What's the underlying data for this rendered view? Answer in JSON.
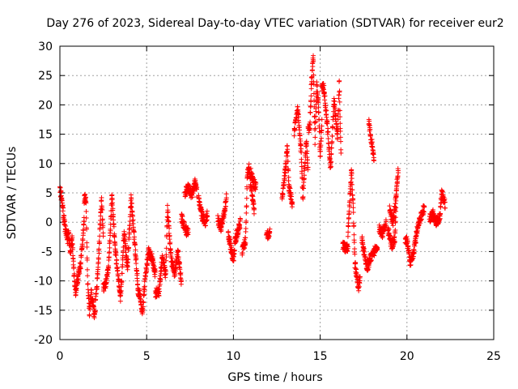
{
  "chart_data": {
    "type": "scatter",
    "title": "Day 276 of 2023, Sidereal Day-to-day VTEC variation (SDTVAR) for receiver eur2",
    "xlabel": "GPS time / hours",
    "ylabel": "SDTVAR / TECUs",
    "xlim": [
      0,
      25
    ],
    "ylim": [
      -20,
      30
    ],
    "xticks": [
      0,
      5,
      10,
      15,
      20,
      25
    ],
    "yticks": [
      -20,
      -15,
      -10,
      -5,
      0,
      5,
      10,
      15,
      20,
      25,
      30
    ],
    "grid": true,
    "marker": "+",
    "color": "#ff0000",
    "series": [
      {
        "name": "SDTVAR",
        "segments": [
          {
            "start": 0.0,
            "end": 0.45,
            "anchors": [
              [
                0.0,
                5.5
              ],
              [
                0.1,
                4.0
              ],
              [
                0.2,
                1.5
              ],
              [
                0.3,
                -1.0
              ],
              [
                0.45,
                -3.0
              ]
            ]
          },
          {
            "start": 0.45,
            "end": 1.4,
            "anchors": [
              [
                0.5,
                -2.0
              ],
              [
                0.6,
                -5.0
              ],
              [
                0.7,
                -3.0
              ],
              [
                0.8,
                -8.0
              ],
              [
                0.9,
                -12.0
              ],
              [
                1.0,
                -10.0
              ],
              [
                1.2,
                -7.0
              ],
              [
                1.4,
                0.5
              ]
            ]
          },
          {
            "start": 1.4,
            "end": 2.5,
            "anchors": [
              [
                1.5,
                4.0
              ],
              [
                1.6,
                -10.0
              ],
              [
                1.7,
                -15.5
              ],
              [
                1.8,
                -12.0
              ],
              [
                2.0,
                -16.0
              ],
              [
                2.2,
                -8.0
              ],
              [
                2.4,
                4.0
              ],
              [
                2.5,
                -2.0
              ]
            ]
          },
          {
            "start": 2.5,
            "end": 4.5,
            "anchors": [
              [
                2.6,
                -11.0
              ],
              [
                2.8,
                -8.0
              ],
              [
                3.0,
                4.5
              ],
              [
                3.2,
                -5.0
              ],
              [
                3.5,
                -13.0
              ],
              [
                3.7,
                -2.0
              ],
              [
                3.9,
                -8.0
              ],
              [
                4.1,
                4.0
              ],
              [
                4.3,
                -3.0
              ],
              [
                4.5,
                -11.0
              ]
            ]
          },
          {
            "start": 4.5,
            "end": 5.5,
            "anchors": [
              [
                4.6,
                -12.0
              ],
              [
                4.75,
                -15.5
              ],
              [
                4.9,
                -10.0
              ],
              [
                5.1,
                -5.0
              ],
              [
                5.3,
                -6.0
              ],
              [
                5.5,
                -9.0
              ]
            ]
          },
          {
            "start": 5.5,
            "end": 7.0,
            "anchors": [
              [
                5.7,
                -12.0
              ],
              [
                5.9,
                -6.0
              ],
              [
                6.1,
                -9.0
              ],
              [
                6.2,
                2.5
              ],
              [
                6.4,
                -6.0
              ],
              [
                6.6,
                -9.0
              ],
              [
                6.8,
                -5.0
              ],
              [
                7.0,
                -10.0
              ]
            ]
          },
          {
            "start": 7.2,
            "end": 7.9,
            "anchors": [
              [
                7.2,
                5.0
              ],
              [
                7.4,
                6.0
              ],
              [
                7.6,
                4.5
              ],
              [
                7.8,
                7.0
              ],
              [
                7.9,
                5.0
              ]
            ]
          },
          {
            "start": 7.0,
            "end": 7.4,
            "anchors": [
              [
                7.0,
                1.0
              ],
              [
                7.2,
                -1.0
              ],
              [
                7.4,
                -2.0
              ]
            ]
          },
          {
            "start": 8.0,
            "end": 8.5,
            "anchors": [
              [
                8.0,
                4.0
              ],
              [
                8.2,
                1.0
              ],
              [
                8.4,
                0.0
              ],
              [
                8.5,
                1.5
              ]
            ]
          },
          {
            "start": 9.1,
            "end": 9.6,
            "anchors": [
              [
                9.1,
                0.5
              ],
              [
                9.3,
                -1.0
              ],
              [
                9.5,
                2.0
              ],
              [
                9.6,
                4.5
              ]
            ]
          },
          {
            "start": 9.7,
            "end": 10.4,
            "anchors": [
              [
                9.7,
                -2.0
              ],
              [
                9.9,
                -5.0
              ],
              [
                10.0,
                -6.5
              ],
              [
                10.1,
                -3.0
              ],
              [
                10.3,
                -1.0
              ],
              [
                10.4,
                0.0
              ]
            ]
          },
          {
            "start": 10.5,
            "end": 11.2,
            "anchors": [
              [
                10.5,
                -5.0
              ],
              [
                10.7,
                -3.0
              ],
              [
                10.8,
                8.0
              ],
              [
                10.9,
                10.0
              ],
              [
                11.0,
                6.0
              ],
              [
                11.2,
                2.0
              ]
            ]
          },
          {
            "start": 11.0,
            "end": 11.3,
            "anchors": [
              [
                11.0,
                8.5
              ],
              [
                11.15,
                7.0
              ],
              [
                11.3,
                6.0
              ]
            ]
          },
          {
            "start": 11.9,
            "end": 12.1,
            "anchors": [
              [
                11.9,
                -1.5
              ],
              [
                12.0,
                -2.5
              ],
              [
                12.1,
                -1.0
              ]
            ]
          },
          {
            "start": 12.8,
            "end": 13.4,
            "anchors": [
              [
                12.8,
                4.0
              ],
              [
                13.0,
                9.0
              ],
              [
                13.1,
                13.0
              ],
              [
                13.2,
                6.0
              ],
              [
                13.4,
                3.0
              ]
            ]
          },
          {
            "start": 13.5,
            "end": 14.3,
            "anchors": [
              [
                13.5,
                15.0
              ],
              [
                13.7,
                19.5
              ],
              [
                13.9,
                12.0
              ],
              [
                14.0,
                4.0
              ],
              [
                14.2,
                14.0
              ],
              [
                14.3,
                9.0
              ]
            ]
          },
          {
            "start": 14.3,
            "end": 15.1,
            "anchors": [
              [
                14.4,
                16.0
              ],
              [
                14.5,
                24.0
              ],
              [
                14.6,
                28.0
              ],
              [
                14.7,
                14.0
              ],
              [
                14.8,
                23.5
              ],
              [
                14.9,
                20.0
              ],
              [
                15.0,
                11.0
              ],
              [
                15.1,
                17.0
              ]
            ]
          },
          {
            "start": 15.1,
            "end": 16.2,
            "anchors": [
              [
                15.2,
                23.0
              ],
              [
                15.4,
                17.0
              ],
              [
                15.6,
                9.0
              ],
              [
                15.8,
                21.0
              ],
              [
                16.0,
                14.0
              ],
              [
                16.1,
                24.0
              ],
              [
                16.2,
                11.0
              ]
            ]
          },
          {
            "start": 16.3,
            "end": 16.6,
            "anchors": [
              [
                16.3,
                -4.0
              ],
              [
                16.5,
                -4.5
              ]
            ]
          },
          {
            "start": 16.6,
            "end": 17.3,
            "anchors": [
              [
                16.6,
                -2.0
              ],
              [
                16.8,
                8.5
              ],
              [
                16.9,
                3.0
              ],
              [
                17.0,
                -7.0
              ],
              [
                17.2,
                -11.5
              ],
              [
                17.3,
                -9.0
              ]
            ]
          },
          {
            "start": 17.4,
            "end": 18.3,
            "anchors": [
              [
                17.4,
                -3.0
              ],
              [
                17.6,
                -6.0
              ],
              [
                17.7,
                -8.0
              ],
              [
                17.9,
                -6.0
              ],
              [
                18.1,
                -5.0
              ],
              [
                18.3,
                -4.5
              ]
            ]
          },
          {
            "start": 17.8,
            "end": 18.1,
            "anchors": [
              [
                17.8,
                17.0
              ],
              [
                17.9,
                15.0
              ],
              [
                18.0,
                13.0
              ],
              [
                18.1,
                11.0
              ]
            ]
          },
          {
            "start": 18.4,
            "end": 18.8,
            "anchors": [
              [
                18.4,
                -1.0
              ],
              [
                18.6,
                -2.0
              ],
              [
                18.8,
                0.0
              ]
            ]
          },
          {
            "start": 18.9,
            "end": 19.5,
            "anchors": [
              [
                18.9,
                -1.0
              ],
              [
                19.1,
                -4.0
              ],
              [
                19.3,
                -3.0
              ],
              [
                19.4,
                6.0
              ],
              [
                19.5,
                9.0
              ]
            ]
          },
          {
            "start": 19.0,
            "end": 19.4,
            "anchors": [
              [
                19.0,
                2.0
              ],
              [
                19.2,
                0.0
              ],
              [
                19.4,
                5.0
              ]
            ]
          },
          {
            "start": 19.9,
            "end": 21.0,
            "anchors": [
              [
                20.0,
                -3.0
              ],
              [
                20.2,
                -7.0
              ],
              [
                20.4,
                -5.0
              ],
              [
                20.6,
                -1.0
              ],
              [
                20.8,
                1.0
              ],
              [
                21.0,
                2.5
              ]
            ]
          },
          {
            "start": 21.3,
            "end": 22.2,
            "anchors": [
              [
                21.3,
                0.5
              ],
              [
                21.5,
                1.5
              ],
              [
                21.7,
                0.0
              ],
              [
                21.9,
                1.0
              ],
              [
                22.0,
                5.0
              ],
              [
                22.2,
                3.0
              ]
            ]
          }
        ]
      }
    ]
  }
}
